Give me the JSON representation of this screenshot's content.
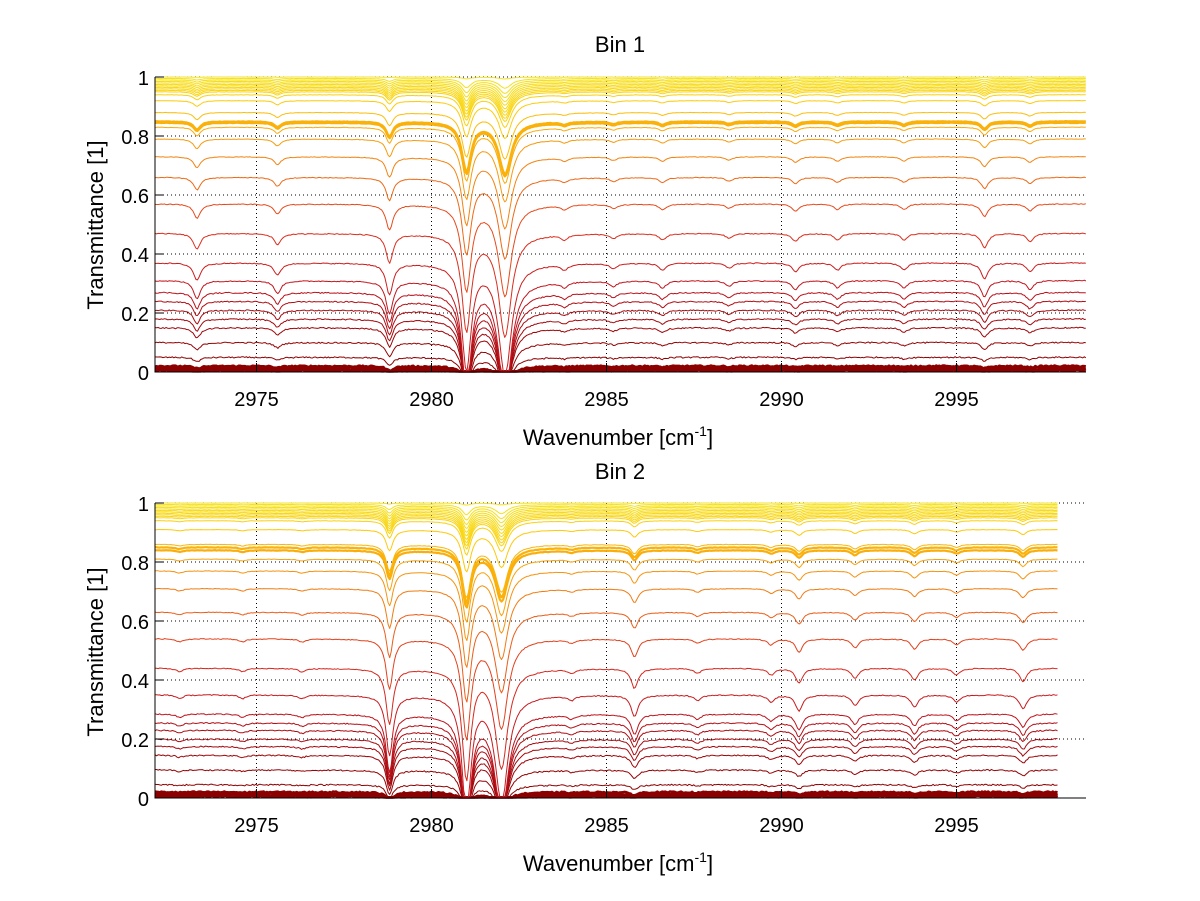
{
  "chart_data": [
    {
      "type": "line",
      "title": "Bin 1",
      "xlabel": "Wavenumber [cm",
      "xlabel_superscript": "-1",
      "xlabel_suffix": "]",
      "ylabel": "Transmittance [1]",
      "xlim": [
        2972.1,
        2998.7
      ],
      "ylim": [
        0,
        1
      ],
      "xticks": [
        2975,
        2980,
        2985,
        2990,
        2995
      ],
      "xtick_labels": [
        "2975",
        "2980",
        "2985",
        "2990",
        "2995"
      ],
      "yticks": [
        0,
        0.2,
        0.4,
        0.6,
        0.8,
        1
      ],
      "ytick_labels": [
        "0",
        "0.2",
        "0.4",
        "0.6",
        "0.8",
        "1"
      ],
      "grid": true,
      "x_end": 2998.7,
      "colormap": [
        "#8b0000",
        "#c0141e",
        "#d92b1e",
        "#e8501c",
        "#f07a14",
        "#f8a30c",
        "#fdc80a",
        "#f5e21a"
      ],
      "absorption_lines": [
        {
          "x": 2973.3,
          "strength": 0.05,
          "width": 0.12
        },
        {
          "x": 2975.6,
          "strength": 0.035,
          "width": 0.12
        },
        {
          "x": 2978.8,
          "strength": 0.09,
          "width": 0.12
        },
        {
          "x": 2981.0,
          "strength": 0.3,
          "width": 0.16
        },
        {
          "x": 2982.1,
          "strength": 0.32,
          "width": 0.22
        },
        {
          "x": 2983.8,
          "strength": 0.015,
          "width": 0.12
        },
        {
          "x": 2985.2,
          "strength": 0.015,
          "width": 0.12
        },
        {
          "x": 2986.6,
          "strength": 0.02,
          "width": 0.12
        },
        {
          "x": 2988.5,
          "strength": 0.015,
          "width": 0.12
        },
        {
          "x": 2990.4,
          "strength": 0.025,
          "width": 0.12
        },
        {
          "x": 2991.6,
          "strength": 0.02,
          "width": 0.12
        },
        {
          "x": 2993.5,
          "strength": 0.02,
          "width": 0.12
        },
        {
          "x": 2995.8,
          "strength": 0.045,
          "width": 0.12
        },
        {
          "x": 2997.1,
          "strength": 0.025,
          "width": 0.12
        }
      ],
      "series_baselines": [
        0.005,
        0.01,
        0.015,
        0.02,
        0.05,
        0.1,
        0.15,
        0.18,
        0.21,
        0.24,
        0.27,
        0.31,
        0.37,
        0.47,
        0.57,
        0.66,
        0.73,
        0.79,
        0.83,
        0.845,
        0.85,
        0.88,
        0.92,
        0.94,
        0.95,
        0.955,
        0.96,
        0.965,
        0.97,
        0.975,
        0.98,
        0.985,
        0.99,
        0.995,
        1.0
      ]
    },
    {
      "type": "line",
      "title": "Bin 2",
      "xlabel": "Wavenumber [cm",
      "xlabel_superscript": "-1",
      "xlabel_suffix": "]",
      "ylabel": "Transmittance [1]",
      "xlim": [
        2972.1,
        2998.7
      ],
      "ylim": [
        0,
        1
      ],
      "xticks": [
        2975,
        2980,
        2985,
        2990,
        2995
      ],
      "xtick_labels": [
        "2975",
        "2980",
        "2985",
        "2990",
        "2995"
      ],
      "yticks": [
        0,
        0.2,
        0.4,
        0.6,
        0.8,
        1
      ],
      "ytick_labels": [
        "0",
        "0.2",
        "0.4",
        "0.6",
        "0.8",
        "1"
      ],
      "grid": true,
      "x_end": 2997.9,
      "colormap": [
        "#8b0000",
        "#c0141e",
        "#d92b1e",
        "#e8501c",
        "#f07a14",
        "#f8a30c",
        "#fdc80a",
        "#f5e21a"
      ],
      "absorption_lines": [
        {
          "x": 2972.8,
          "strength": 0.01,
          "width": 0.12
        },
        {
          "x": 2974.6,
          "strength": 0.01,
          "width": 0.12
        },
        {
          "x": 2976.3,
          "strength": 0.01,
          "width": 0.12
        },
        {
          "x": 2978.8,
          "strength": 0.17,
          "width": 0.12
        },
        {
          "x": 2981.0,
          "strength": 0.33,
          "width": 0.15
        },
        {
          "x": 2982.0,
          "strength": 0.3,
          "width": 0.22
        },
        {
          "x": 2984.0,
          "strength": 0.012,
          "width": 0.12
        },
        {
          "x": 2985.8,
          "strength": 0.06,
          "width": 0.12
        },
        {
          "x": 2987.6,
          "strength": 0.015,
          "width": 0.12
        },
        {
          "x": 2989.7,
          "strength": 0.02,
          "width": 0.12
        },
        {
          "x": 2990.5,
          "strength": 0.045,
          "width": 0.12
        },
        {
          "x": 2992.1,
          "strength": 0.03,
          "width": 0.12
        },
        {
          "x": 2993.8,
          "strength": 0.035,
          "width": 0.12
        },
        {
          "x": 2995.0,
          "strength": 0.02,
          "width": 0.12
        },
        {
          "x": 2996.9,
          "strength": 0.04,
          "width": 0.12
        }
      ],
      "series_baselines": [
        0.005,
        0.01,
        0.015,
        0.02,
        0.045,
        0.095,
        0.145,
        0.175,
        0.2,
        0.23,
        0.255,
        0.285,
        0.35,
        0.44,
        0.54,
        0.63,
        0.71,
        0.77,
        0.81,
        0.84,
        0.85,
        0.86,
        0.91,
        0.94,
        0.95,
        0.955,
        0.96,
        0.965,
        0.97,
        0.975,
        0.98,
        0.985,
        0.99,
        0.995,
        1.0
      ]
    }
  ]
}
